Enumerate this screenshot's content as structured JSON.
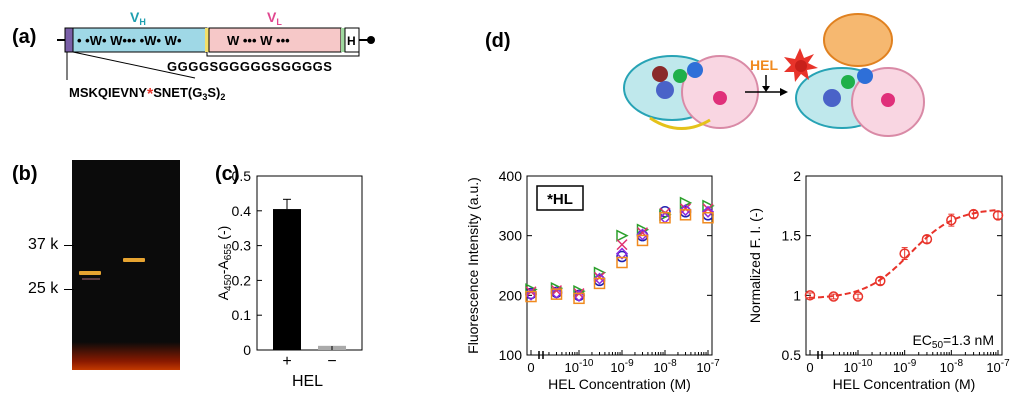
{
  "panels": {
    "a": "(a)",
    "b": "(b)",
    "c": "(c)",
    "d": "(d)"
  },
  "construct": {
    "vh_label": "V",
    "vh_sub": "H",
    "vl_label": "V",
    "vl_sub": "L",
    "vh_text": "• •W• W••• •W• W•",
    "vl_text": "W  •••  W  •••",
    "tag_text": "H",
    "linker": "GGGGSGGGGGSGGGGS",
    "seq_left": "MSKQIEVNY",
    "seq_star": "*",
    "seq_right": "SNET(G",
    "seq_sub1": "3",
    "seq_mid": "S)",
    "seq_sub2": "2",
    "colors": {
      "vh": "#9fd8e6",
      "vl": "#f6c8c8",
      "vh_label": "#1f9fb0",
      "vl_label": "#e0468f",
      "star": "#e8332a"
    }
  },
  "gel": {
    "marker_37": "37 k",
    "marker_25": "25 k"
  },
  "scheme": {
    "hel_label": "HEL",
    "hel_color": "#f08a1e"
  },
  "chart_data": [
    {
      "id": "c",
      "type": "bar",
      "categories": [
        "+",
        "−"
      ],
      "values": [
        0.405,
        0.012
      ],
      "errors": [
        0.028,
        0.002
      ],
      "colors": [
        "#000000",
        "#aaaaaa"
      ],
      "ylabel_main": "A",
      "ylabel_sub1": "450",
      "ylabel_dash": "-A",
      "ylabel_sub2": "655",
      "ylabel_tail": " (-)",
      "xlabel": "HEL",
      "ylim": [
        0,
        0.5
      ],
      "yticks": [
        "0",
        "0.1",
        "0.2",
        "0.3",
        "0.4",
        "0.5"
      ]
    },
    {
      "id": "d1",
      "type": "scatter",
      "ylabel": "Fluorescence Intensity (a.u.)",
      "xlabel": "HEL Concentration (M)",
      "ylim": [
        100,
        400
      ],
      "x_scale": "log with zero break",
      "yticks": [
        "100",
        "200",
        "300",
        "400"
      ],
      "xticks": [
        {
          "base": "0",
          "exp": ""
        },
        {
          "base": "10",
          "exp": "-10"
        },
        {
          "base": "10",
          "exp": "-9"
        },
        {
          "base": "10",
          "exp": "-8"
        },
        {
          "base": "10",
          "exp": "-7"
        }
      ],
      "annotation": "*HL",
      "x": [
        0,
        3e-11,
        1e-10,
        3e-10,
        1e-09,
        3e-09,
        1e-08,
        3e-08,
        1e-07
      ],
      "series": [
        {
          "marker": "circle",
          "color": "#1f1fb0",
          "values": [
            203,
            205,
            200,
            225,
            265,
            300,
            340,
            340,
            335
          ]
        },
        {
          "marker": "triangle",
          "color": "#2ca02c",
          "values": [
            210,
            212,
            207,
            238,
            300,
            310,
            335,
            355,
            350
          ]
        },
        {
          "marker": "cross",
          "color": "#e03070",
          "values": [
            206,
            208,
            203,
            230,
            285,
            305,
            338,
            345,
            345
          ]
        },
        {
          "marker": "diamond",
          "color": "#8a2be2",
          "values": [
            201,
            204,
            199,
            228,
            270,
            302,
            330,
            343,
            340
          ]
        },
        {
          "marker": "square",
          "color": "#f08a1e",
          "values": [
            198,
            202,
            195,
            220,
            255,
            292,
            330,
            335,
            330
          ]
        }
      ]
    },
    {
      "id": "d2",
      "type": "scatter",
      "ylabel": "Normalized F. I. (-)",
      "xlabel": "HEL Concentration (M)",
      "ylim": [
        0.5,
        2
      ],
      "x_scale": "log with zero break",
      "yticks": [
        "0.5",
        "1",
        "1.5",
        "2"
      ],
      "xticks": [
        {
          "base": "0",
          "exp": ""
        },
        {
          "base": "10",
          "exp": "-10"
        },
        {
          "base": "10",
          "exp": "-9"
        },
        {
          "base": "10",
          "exp": "-8"
        },
        {
          "base": "10",
          "exp": "-7"
        }
      ],
      "annotation": "EC",
      "annotation_sub": "50",
      "annotation_tail": "=1.3 nM",
      "color": "#e8332a",
      "x": [
        0,
        3e-11,
        1e-10,
        3e-10,
        1e-09,
        3e-09,
        1e-08,
        3e-08,
        1e-07
      ],
      "values": [
        1.0,
        0.99,
        0.99,
        1.12,
        1.35,
        1.47,
        1.63,
        1.68,
        1.67
      ],
      "errors": [
        0.02,
        0.02,
        0.02,
        0.03,
        0.05,
        0.03,
        0.05,
        0.03,
        0.03
      ],
      "fit": {
        "bottom": 0.97,
        "top": 1.73,
        "ec50": 1.3e-09,
        "hill": 0.9
      }
    }
  ]
}
